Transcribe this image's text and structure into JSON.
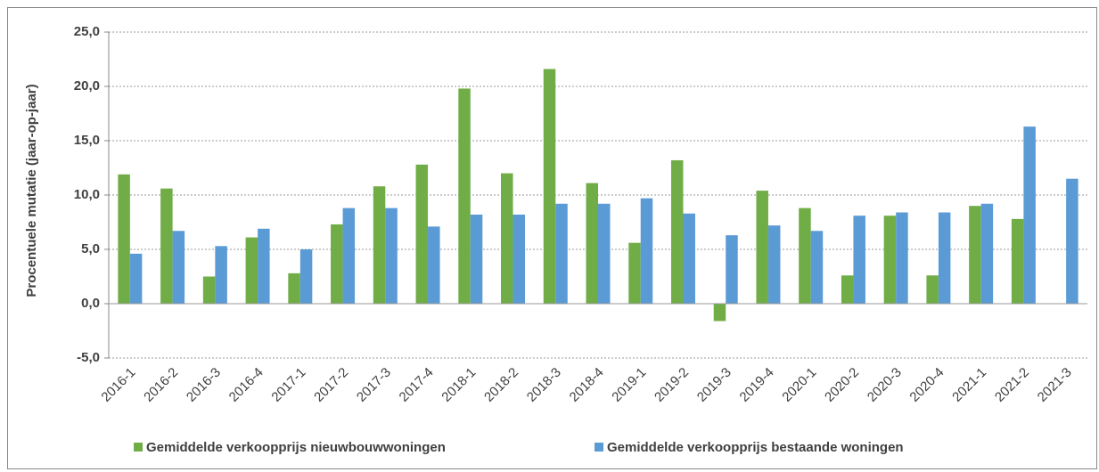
{
  "chart_data": {
    "type": "bar",
    "y_label": "Procentuele mutatie (jaar-op-jaar)",
    "categories": [
      "2016-1",
      "2016-2",
      "2016-3",
      "2016-4",
      "2017-1",
      "2017-2",
      "2017-3",
      "2017-4",
      "2018-1",
      "2018-2",
      "2018-3",
      "2018-4",
      "2019-1",
      "2019-2",
      "2019-3",
      "2019-4",
      "2020-1",
      "2020-2",
      "2020-3",
      "2020-4",
      "2021-1",
      "2021-2",
      "2021-3"
    ],
    "series": [
      {
        "name": "Gemiddelde verkoopprijs nieuwbouwwoningen",
        "color": "#70ad47",
        "values": [
          11.9,
          10.6,
          2.5,
          6.1,
          2.8,
          7.3,
          10.8,
          12.8,
          19.8,
          12.0,
          21.6,
          11.1,
          5.6,
          13.2,
          -1.6,
          10.4,
          8.8,
          2.6,
          8.1,
          2.6,
          9.0,
          7.8,
          null
        ]
      },
      {
        "name": "Gemiddelde verkoopprijs bestaande woningen",
        "color": "#5b9bd5",
        "values": [
          4.6,
          6.7,
          5.3,
          6.9,
          5.0,
          8.8,
          8.8,
          7.1,
          8.2,
          8.2,
          9.2,
          9.2,
          9.7,
          8.3,
          6.3,
          7.2,
          6.7,
          8.1,
          8.4,
          8.4,
          9.2,
          16.3,
          11.5
        ]
      }
    ],
    "ylim": [
      -5,
      25
    ],
    "yticks": [
      {
        "value": -5,
        "label": "-5,0"
      },
      {
        "value": 0,
        "label": "0,0"
      },
      {
        "value": 5,
        "label": "5,0"
      },
      {
        "value": 10,
        "label": "10,0"
      },
      {
        "value": 15,
        "label": "15,0"
      },
      {
        "value": 20,
        "label": "20,0"
      },
      {
        "value": 25,
        "label": "25,0"
      }
    ],
    "grid": true,
    "legend": "bottom"
  }
}
